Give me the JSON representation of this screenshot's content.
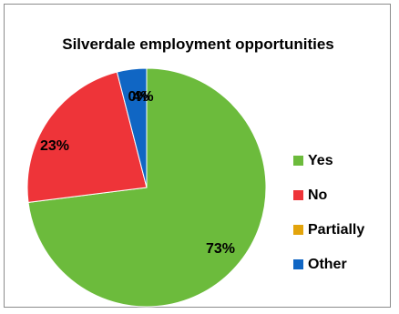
{
  "chart_data": {
    "type": "pie",
    "title": "Silverdale employment opportunities",
    "categories": [
      "Yes",
      "No",
      "Partially",
      "Other"
    ],
    "values": [
      73,
      23,
      0,
      4
    ],
    "data_labels": [
      "73%",
      "23%",
      "0%",
      "4%"
    ],
    "colors": [
      "#6cbb3c",
      "#ee3439",
      "#e3a40b",
      "#1066c4"
    ],
    "legend_position": "right",
    "start_angle": "top, clockwise"
  }
}
